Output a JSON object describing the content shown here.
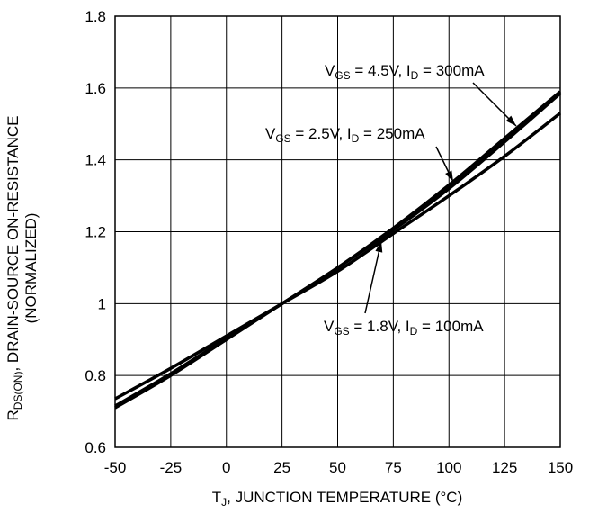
{
  "chart_data": {
    "type": "line",
    "xlabel": {
      "main": "T",
      "sub": "J",
      "rest": ", JUNCTION TEMPERATURE (°C)"
    },
    "ylabel": {
      "line1_main": "R",
      "line1_sub": "DS(ON)",
      "line1_rest": ", DRAIN-SOURCE ON-RESISTANCE",
      "line2": "(NORMALIZED)"
    },
    "xlim": [
      -50,
      150
    ],
    "ylim": [
      0.6,
      1.8
    ],
    "xticks": [
      -50,
      -25,
      0,
      25,
      50,
      75,
      100,
      125,
      150
    ],
    "xtick_labels": [
      "-50",
      "-25",
      "0",
      "25",
      "50",
      "75",
      "100",
      "125",
      "150"
    ],
    "yticks": [
      0.6,
      0.8,
      1.0,
      1.2,
      1.4,
      1.6,
      1.8
    ],
    "ytick_labels": [
      "0.6",
      "0.8",
      "1",
      "1.2",
      "1.4",
      "1.6",
      "1.8"
    ],
    "grid": true,
    "line_color": "#000000",
    "series": [
      {
        "x": [
          -50,
          -25,
          0,
          25,
          50,
          75,
          100,
          125,
          150
        ],
        "y": [
          0.71,
          0.8,
          0.9,
          1.0,
          1.1,
          1.21,
          1.33,
          1.46,
          1.59
        ]
      },
      {
        "x": [
          -50,
          -25,
          0,
          25,
          50,
          75,
          100,
          125,
          150
        ],
        "y": [
          0.715,
          0.805,
          0.903,
          1.0,
          1.1,
          1.205,
          1.32,
          1.45,
          1.585
        ]
      },
      {
        "x": [
          -50,
          -25,
          0,
          25,
          50,
          75,
          100,
          125,
          150
        ],
        "y": [
          0.735,
          0.82,
          0.91,
          1.0,
          1.09,
          1.195,
          1.3,
          1.41,
          1.53
        ]
      }
    ],
    "annotations": [
      {
        "v": "V",
        "vsub": "GS",
        "vval": " = 4.5V, I",
        "isub": "D",
        "ival": " = 300mA"
      },
      {
        "v": "V",
        "vsub": "GS",
        "vval": " = 2.5V, I",
        "isub": "D",
        "ival": " = 250mA"
      },
      {
        "v": "V",
        "vsub": "GS",
        "vval": " = 1.8V, I",
        "isub": "D",
        "ival": " = 100mA"
      }
    ]
  }
}
